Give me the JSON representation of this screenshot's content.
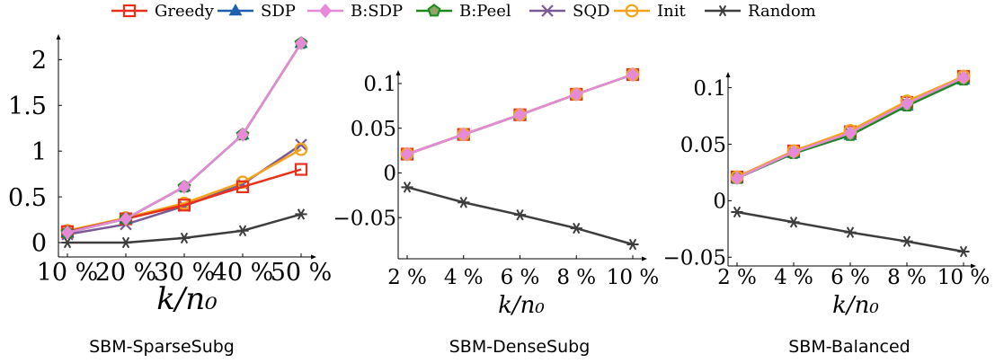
{
  "legend": [
    {
      "name": "Greedy",
      "color": "#e8311a",
      "marker": "square-open"
    },
    {
      "name": "SDP",
      "color": "#1f5fae",
      "marker": "triangle"
    },
    {
      "name": "B:SDP",
      "color": "#e68ad8",
      "marker": "diamond"
    },
    {
      "name": "B:Peel",
      "color": "#1a8a1a",
      "marker": "pentagon"
    },
    {
      "name": "SQD",
      "color": "#7a5a96",
      "marker": "x"
    },
    {
      "name": "Init",
      "color": "#f5a21b",
      "marker": "circle-open"
    },
    {
      "name": "Random",
      "color": "#3d3d3d",
      "marker": "star"
    }
  ],
  "chart_data": [
    {
      "type": "line",
      "caption": "SBM-SparseSubg",
      "xlabel": "k/n₀",
      "x": [
        10,
        20,
        30,
        40,
        50
      ],
      "xtick_labels": [
        "10 %",
        "20 %",
        "30 %",
        "40 %",
        "50 %"
      ],
      "xlim": [
        10,
        50
      ],
      "ylim": [
        0,
        2.2
      ],
      "yticks": [
        0,
        0.5,
        1,
        1.5,
        2
      ],
      "ytick_labels": [
        "0",
        "0.5",
        "1",
        "1.5",
        "2"
      ],
      "series": [
        {
          "name": "Random",
          "values": [
            0.0,
            0.0,
            0.05,
            0.13,
            0.31
          ]
        },
        {
          "name": "SQD",
          "values": [
            0.09,
            0.2,
            0.4,
            0.64,
            1.07
          ]
        },
        {
          "name": "Init",
          "values": [
            0.13,
            0.27,
            0.43,
            0.66,
            1.02
          ]
        },
        {
          "name": "Greedy",
          "values": [
            0.12,
            0.26,
            0.41,
            0.61,
            0.8
          ]
        },
        {
          "name": "SDP",
          "values": [
            0.11,
            0.26,
            0.61,
            1.18,
            2.18
          ]
        },
        {
          "name": "B:Peel",
          "values": [
            0.11,
            0.26,
            0.61,
            1.18,
            2.18
          ]
        },
        {
          "name": "B:SDP",
          "values": [
            0.11,
            0.26,
            0.61,
            1.18,
            2.18
          ]
        }
      ]
    },
    {
      "type": "line",
      "caption": "SBM-DenseSubg",
      "xlabel": "k/n₀",
      "x": [
        2,
        4,
        6,
        8,
        10
      ],
      "xtick_labels": [
        "2 %",
        "4 %",
        "6 %",
        "8 %",
        "10 %"
      ],
      "xlim": [
        2,
        10
      ],
      "ylim": [
        -0.08,
        0.11
      ],
      "yticks": [
        -0.05,
        0,
        0.05,
        0.1
      ],
      "ytick_labels": [
        "−0.05",
        "0",
        "0.05",
        "0.1"
      ],
      "series": [
        {
          "name": "Random",
          "values": [
            -0.016,
            -0.033,
            -0.047,
            -0.062,
            -0.08
          ]
        },
        {
          "name": "SQD",
          "values": [
            0.021,
            0.043,
            0.065,
            0.088,
            0.11
          ]
        },
        {
          "name": "Greedy",
          "values": [
            0.021,
            0.043,
            0.065,
            0.088,
            0.11
          ]
        },
        {
          "name": "SDP",
          "values": [
            0.021,
            0.043,
            0.065,
            0.088,
            0.11
          ]
        },
        {
          "name": "B:Peel",
          "values": [
            0.021,
            0.043,
            0.065,
            0.088,
            0.11
          ]
        },
        {
          "name": "Init",
          "values": [
            0.021,
            0.043,
            0.065,
            0.088,
            0.11
          ]
        },
        {
          "name": "B:SDP",
          "values": [
            0.021,
            0.043,
            0.065,
            0.088,
            0.11
          ]
        }
      ]
    },
    {
      "type": "line",
      "caption": "SBM-Balanced",
      "xlabel": "k/n₀",
      "x": [
        2,
        4,
        6,
        8,
        10
      ],
      "xtick_labels": [
        "2 %",
        "4 %",
        "6 %",
        "8 %",
        "10 %"
      ],
      "xlim": [
        2,
        10
      ],
      "ylim": [
        -0.045,
        0.11
      ],
      "yticks": [
        -0.05,
        0,
        0.05,
        0.1
      ],
      "ytick_labels": [
        "−0.05",
        "0",
        "0.05",
        "0.1"
      ],
      "series": [
        {
          "name": "Random",
          "values": [
            -0.01,
            -0.019,
            -0.028,
            -0.036,
            -0.045
          ]
        },
        {
          "name": "SQD",
          "values": [
            0.02,
            0.043,
            0.06,
            0.086,
            0.109
          ]
        },
        {
          "name": "Greedy",
          "values": [
            0.021,
            0.044,
            0.061,
            0.087,
            0.11
          ]
        },
        {
          "name": "SDP",
          "values": [
            0.02,
            0.042,
            0.058,
            0.084,
            0.107
          ]
        },
        {
          "name": "B:Peel",
          "values": [
            0.02,
            0.042,
            0.058,
            0.084,
            0.107
          ]
        },
        {
          "name": "Init",
          "values": [
            0.021,
            0.044,
            0.062,
            0.088,
            0.11
          ]
        },
        {
          "name": "B:SDP",
          "values": [
            0.02,
            0.043,
            0.06,
            0.086,
            0.109
          ]
        }
      ]
    }
  ]
}
